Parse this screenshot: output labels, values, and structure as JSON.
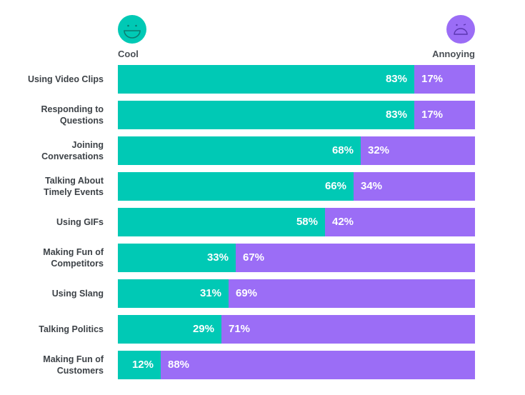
{
  "chart_data": {
    "type": "bar",
    "orientation": "horizontal-stacked-100",
    "legend": [
      {
        "label": "Cool",
        "icon": "smiling-face-icon",
        "color": "#00C9B5"
      },
      {
        "label": "Annoying",
        "icon": "frowning-face-icon",
        "color": "#9B6DF6"
      }
    ],
    "legend_placement": "top",
    "categories": [
      "Using Video Clips",
      "Responding to Questions",
      "Joining Conversations",
      "Talking About Timely Events",
      "Using GIFs",
      "Making Fun of Competitors",
      "Using Slang",
      "Talking Politics",
      "Making Fun of Customers"
    ],
    "series": [
      {
        "name": "Cool",
        "values": [
          83,
          83,
          68,
          66,
          58,
          33,
          31,
          29,
          12
        ]
      },
      {
        "name": "Annoying",
        "values": [
          17,
          17,
          32,
          34,
          42,
          67,
          69,
          71,
          88
        ]
      }
    ],
    "value_suffix": "%",
    "xlim": [
      0,
      100
    ]
  }
}
